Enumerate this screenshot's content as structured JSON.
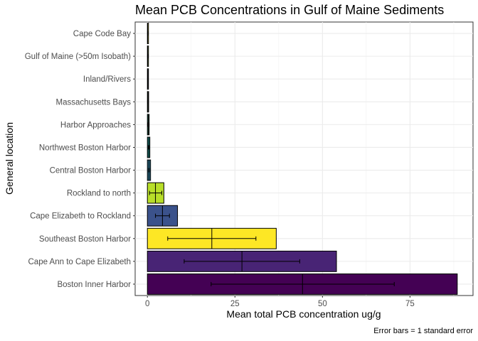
{
  "chart_data": {
    "type": "bar",
    "orientation": "horizontal",
    "title": "Mean PCB Concentrations in Gulf of Maine Sediments",
    "xlabel": "Mean total PCB concentration ug/g",
    "ylabel": "General location",
    "caption": "Error bars = 1 standard error",
    "xlim": [
      -3.5,
      93
    ],
    "xticks": [
      0,
      25,
      50,
      75
    ],
    "grid": true,
    "legend": "none",
    "categories": [
      "Boston Inner Harbor",
      "Cape Ann to Cape Elizabeth",
      "Southeast Boston Harbor",
      "Cape Elizabeth to Rockland",
      "Rockland to north",
      "Central Boston Harbor",
      "Northwest Boston Harbor",
      "Harbor Approaches",
      "Massachusetts Bays",
      "Inland/Rivers",
      "Gulf of Maine (>50m Isobath)",
      "Cape Code Bay"
    ],
    "values": [
      88.5,
      54.0,
      36.8,
      8.6,
      4.7,
      0.9,
      0.7,
      0.5,
      0.35,
      0.3,
      0.2,
      0.15
    ],
    "mean_marker": [
      44.3,
      27.0,
      18.4,
      4.3,
      2.3,
      0.45,
      0.35,
      0.25,
      0.18,
      0.15,
      0.1,
      0.08
    ],
    "error_low": [
      18.2,
      10.5,
      5.8,
      2.3,
      0.6,
      0.35,
      0.25,
      0.15,
      0.1,
      0.1,
      0.05,
      0.05
    ],
    "error_high": [
      70.5,
      43.5,
      31.0,
      6.3,
      4.1,
      0.55,
      0.45,
      0.35,
      0.26,
      0.2,
      0.15,
      0.11
    ],
    "colors": [
      "#440154",
      "#482475",
      "#FDE725",
      "#3B528B",
      "#B8DE29",
      "#2C728E",
      "#21908C",
      "#27AD81",
      "#5DC863",
      "#414487",
      "#AADC32",
      "#FDE725"
    ]
  }
}
